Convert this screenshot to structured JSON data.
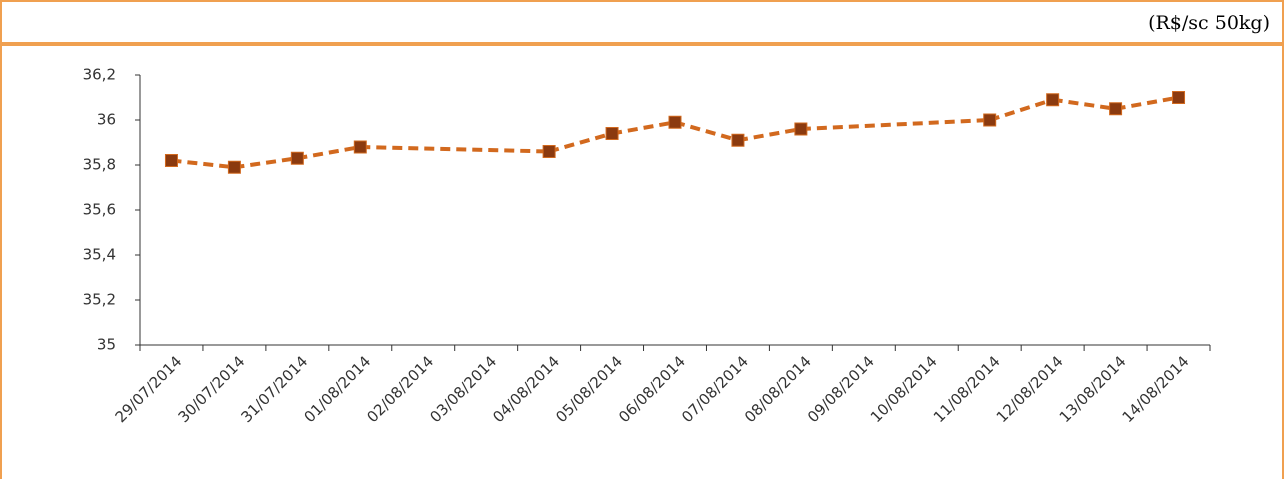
{
  "chart_data": {
    "type": "line",
    "unit_label": "(R$/sc 50kg)",
    "categories": [
      "29/07/2014",
      "30/07/2014",
      "31/07/2014",
      "01/08/2014",
      "02/08/2014",
      "03/08/2014",
      "04/08/2014",
      "05/08/2014",
      "06/08/2014",
      "07/08/2014",
      "08/08/2014",
      "09/08/2014",
      "10/08/2014",
      "11/08/2014",
      "12/08/2014",
      "13/08/2014",
      "14/08/2014"
    ],
    "values": [
      35.82,
      35.79,
      35.83,
      35.88,
      null,
      null,
      35.86,
      35.94,
      35.99,
      35.91,
      35.96,
      null,
      null,
      36.0,
      36.09,
      36.05,
      36.1
    ],
    "color": "#d2691e",
    "marker_color": "#8b3a0f",
    "ylim": [
      35,
      36.2
    ],
    "yticks": [
      35,
      {
        "value": 35.2,
        "label": "35,2"
      },
      {
        "value": 35.4,
        "label": "35,4"
      },
      {
        "value": 35.6,
        "label": "35,6"
      },
      {
        "value": 35.8,
        "label": "35,8"
      },
      36,
      {
        "value": 36.2,
        "label": "36,2"
      }
    ],
    "grid": false
  }
}
